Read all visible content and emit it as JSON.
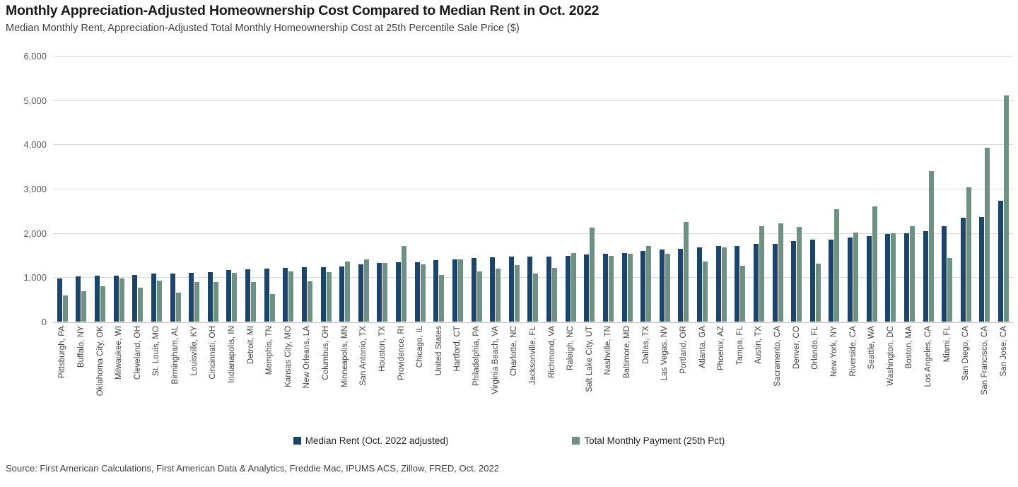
{
  "header": {
    "title": "Monthly Appreciation-Adjusted Homeownership Cost Compared to Median Rent in Oct. 2022",
    "subtitle": "Median Monthly Rent, Appreciation-Adjusted Total Monthly Homeownership Cost at 25th Percentile Sale Price ($)"
  },
  "chart_data": {
    "type": "bar",
    "title": "Monthly Appreciation-Adjusted Homeownership Cost Compared to Median Rent in Oct. 2022",
    "subtitle": "Median Monthly Rent, Appreciation-Adjusted Total Monthly Homeownership Cost at 25th Percentile Sale Price ($)",
    "ylim": [
      0,
      6000
    ],
    "ytick_interval": 1000,
    "ytick_labels": [
      "0",
      "1,000",
      "2,000",
      "3,000",
      "4,000",
      "5,000",
      "6,000"
    ],
    "grid": true,
    "legend_position": "bottom",
    "categories": [
      "Pittsburgh, PA",
      "Buffalo, NY",
      "Oklahoma City, OK",
      "Milwaukee, WI",
      "Cleveland, OH",
      "St. Louis, MO",
      "Birmingham, AL",
      "Louisville, KY",
      "Cincinnati, OH",
      "Indianapolis, IN",
      "Detroit, MI",
      "Memphis, TN",
      "Kansas City, MO",
      "New Orleans, LA",
      "Columbus, OH",
      "Minneapolis, MN",
      "San Antonio, TX",
      "Houston, TX",
      "Providence, RI",
      "Chicago, IL",
      "United States",
      "Hartford, CT",
      "Philadelphia, PA",
      "Virginia Beach, VA",
      "Charlotte, NC",
      "Jacksonville, FL",
      "Richmond, VA",
      "Raleigh, NC",
      "Salt Lake City, UT",
      "Nashville, TN",
      "Baltimore, MD",
      "Dallas, TX",
      "Las Vegas, NV",
      "Portland, OR",
      "Atlanta, GA",
      "Phoenix, AZ",
      "Tampa, FL",
      "Austin, TX",
      "Sacramento, CA",
      "Denver, CO",
      "Orlando, FL",
      "New York, NY",
      "Riverside, CA",
      "Seattle, WA",
      "Washington, DC",
      "Boston, MA",
      "Los Angeles, CA",
      "Miami, FL",
      "San Diego, CA",
      "San Francisco, CA",
      "San Jose, CA"
    ],
    "series": [
      {
        "name": "Median Rent (Oct. 2022 adjusted)",
        "color": "#1c4569",
        "values": [
          980,
          1020,
          1035,
          1045,
          1055,
          1080,
          1090,
          1095,
          1110,
          1165,
          1185,
          1200,
          1215,
          1225,
          1230,
          1240,
          1300,
          1330,
          1335,
          1345,
          1390,
          1400,
          1430,
          1450,
          1465,
          1470,
          1475,
          1490,
          1510,
          1530,
          1550,
          1600,
          1620,
          1650,
          1675,
          1700,
          1710,
          1755,
          1760,
          1815,
          1845,
          1850,
          1895,
          1930,
          1985,
          1995,
          2045,
          2160,
          2345,
          2365,
          2735
        ]
      },
      {
        "name": "Total Monthly Payment (25th Pct)",
        "color": "#6e9181",
        "values": [
          590,
          685,
          800,
          970,
          760,
          930,
          660,
          895,
          900,
          1105,
          900,
          620,
          1130,
          910,
          1115,
          1360,
          1410,
          1330,
          1700,
          1290,
          1060,
          1400,
          1140,
          1190,
          1275,
          1080,
          1220,
          1555,
          2120,
          1490,
          1530,
          1700,
          1525,
          2245,
          1355,
          1680,
          1265,
          2155,
          2220,
          2135,
          1305,
          2535,
          2015,
          2600,
          1990,
          2150,
          3400,
          1430,
          3030,
          3920,
          5100
        ]
      }
    ]
  },
  "source_note": "Source: First American Calculations, First American Data & Analytics, Freddie Mac, IPUMS ACS, Zillow, FRED, Oct. 2022"
}
